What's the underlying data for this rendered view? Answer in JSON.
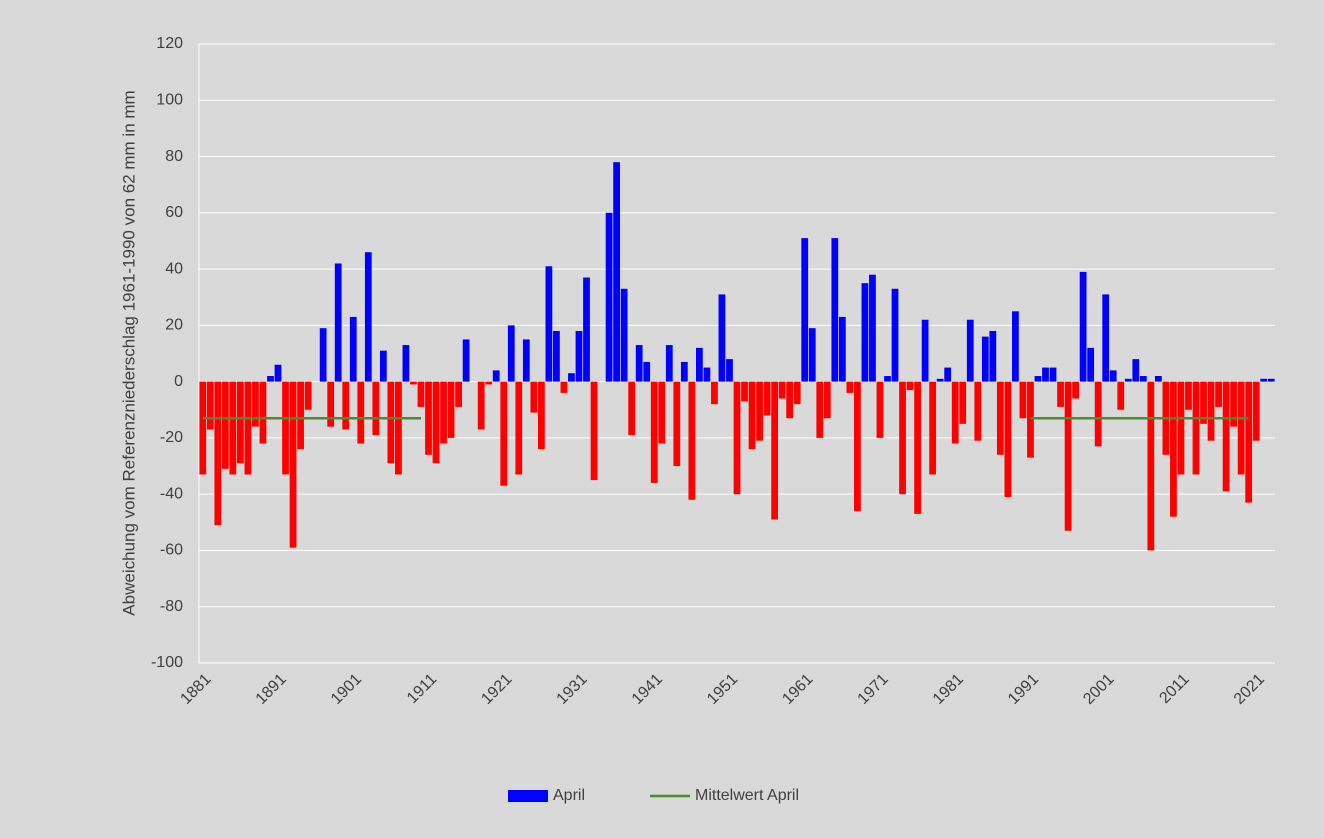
{
  "chart_data": {
    "type": "bar",
    "y_axis_label": "Abweichung vom Referenzniederschlag 1961-1990 von 62 mm in mm",
    "categories": [
      "1881",
      null,
      null,
      null,
      null,
      null,
      null,
      null,
      null,
      null,
      "1891",
      null,
      null,
      null,
      null,
      null,
      null,
      null,
      null,
      null,
      "1901",
      null,
      null,
      null,
      null,
      null,
      null,
      null,
      null,
      null,
      "1911",
      null,
      null,
      null,
      null,
      null,
      null,
      null,
      null,
      null,
      "1921",
      null,
      null,
      null,
      null,
      null,
      null,
      null,
      null,
      null,
      "1931",
      null,
      null,
      null,
      null,
      null,
      null,
      null,
      null,
      null,
      "1941",
      null,
      null,
      null,
      null,
      null,
      null,
      null,
      null,
      null,
      "1951",
      null,
      null,
      null,
      null,
      null,
      null,
      null,
      null,
      null,
      "1961",
      null,
      null,
      null,
      null,
      null,
      null,
      null,
      null,
      null,
      "1971",
      null,
      null,
      null,
      null,
      null,
      null,
      null,
      null,
      null,
      "1981",
      null,
      null,
      null,
      null,
      null,
      null,
      null,
      null,
      null,
      "1991",
      null,
      null,
      null,
      null,
      null,
      null,
      null,
      null,
      null,
      "2001",
      null,
      null,
      null,
      null,
      null,
      null,
      null,
      null,
      null,
      "2011",
      null,
      null,
      null,
      null,
      null,
      null,
      null,
      null,
      null,
      "2021",
      null,
      null
    ],
    "series": [
      {
        "name": "April",
        "type": "bar",
        "color": "#0000ff",
        "negative_color": "#ff0000",
        "values": [
          -33,
          -17,
          -51,
          -31,
          -33,
          -29,
          -33,
          -16,
          -22,
          2,
          6,
          -33,
          -59,
          -24,
          -10,
          0,
          19,
          -16,
          42,
          -17,
          23,
          -22,
          46,
          -19,
          11,
          -29,
          -33,
          13,
          -1,
          -9,
          -26,
          -29,
          -22,
          -20,
          -9,
          15,
          0,
          -17,
          -1,
          4,
          -37,
          20,
          -33,
          15,
          -11,
          -24,
          41,
          18,
          -4,
          3,
          18,
          37,
          -35,
          0,
          60,
          78,
          33,
          -19,
          13,
          7,
          -36,
          -22,
          13,
          -30,
          7,
          -42,
          12,
          5,
          -8,
          31,
          8,
          -40,
          -7,
          -24,
          -21,
          -12,
          -49,
          -6,
          -13,
          -8,
          51,
          19,
          -20,
          -13,
          51,
          23,
          -4,
          -46,
          35,
          38,
          -20,
          2,
          33,
          -40,
          -3,
          -47,
          22,
          -33,
          1,
          5,
          -22,
          -15,
          22,
          -21,
          16,
          18,
          -26,
          -41,
          25,
          -13,
          -27,
          2,
          5,
          5,
          -9,
          -53,
          -6,
          39,
          12,
          -23,
          31,
          4,
          -10,
          1,
          8,
          2,
          -60,
          2,
          -26,
          -48,
          -33,
          -10,
          -33,
          -15,
          -21,
          -9,
          -39,
          -16,
          -33,
          -43,
          -21,
          1,
          1
        ]
      },
      {
        "name": "Mittelwert April",
        "type": "line",
        "color": "#4e8a2e",
        "values": [
          -13,
          -13,
          -13,
          -13,
          -13,
          -13,
          -13,
          -13,
          -13,
          -13,
          -13,
          -13,
          -13,
          -13,
          -13,
          -13,
          -13,
          -13,
          -13,
          -13,
          -13,
          -13,
          -13,
          -13,
          -13,
          -13,
          -13,
          -13,
          -13,
          -13,
          null,
          null,
          null,
          null,
          null,
          null,
          null,
          null,
          null,
          null,
          null,
          null,
          null,
          null,
          null,
          null,
          null,
          null,
          null,
          null,
          null,
          null,
          null,
          null,
          null,
          null,
          null,
          null,
          null,
          null,
          null,
          null,
          null,
          null,
          null,
          null,
          null,
          null,
          null,
          null,
          null,
          null,
          null,
          null,
          null,
          null,
          null,
          null,
          null,
          null,
          null,
          null,
          null,
          null,
          null,
          null,
          null,
          null,
          null,
          null,
          null,
          null,
          null,
          null,
          null,
          null,
          null,
          null,
          null,
          null,
          null,
          null,
          null,
          null,
          null,
          null,
          null,
          null,
          null,
          null,
          -13,
          -13,
          -13,
          -13,
          -13,
          -13,
          -13,
          -13,
          -13,
          -13,
          -13,
          -13,
          -13,
          -13,
          -13,
          -13,
          -13,
          -13,
          -13,
          -13,
          -13,
          -13,
          -13,
          -13,
          -13,
          -13,
          -13,
          -13,
          -13,
          -13,
          null,
          null,
          null
        ]
      }
    ],
    "ylim": [
      -100,
      120
    ],
    "yticks": [
      -100,
      -80,
      -60,
      -40,
      -20,
      0,
      20,
      40,
      60,
      80,
      100,
      120
    ],
    "grid": true,
    "legend": "bottom"
  }
}
